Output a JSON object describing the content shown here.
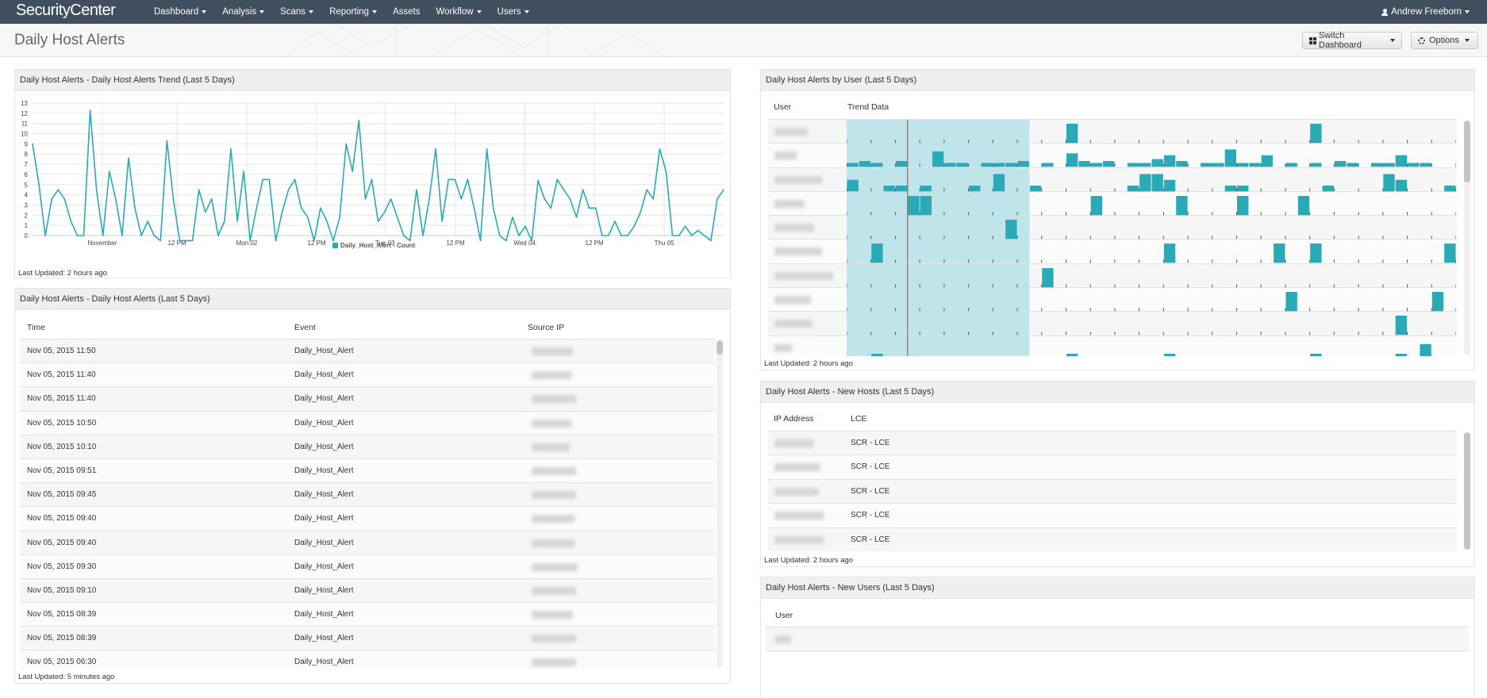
{
  "app": {
    "logo": "SecurityCenter",
    "user_name": "Andrew Freeborn"
  },
  "nav": [
    {
      "label": "Dashboard",
      "dropdown": true
    },
    {
      "label": "Analysis",
      "dropdown": true
    },
    {
      "label": "Scans",
      "dropdown": true
    },
    {
      "label": "Reporting",
      "dropdown": true
    },
    {
      "label": "Assets",
      "dropdown": false
    },
    {
      "label": "Workflow",
      "dropdown": true
    },
    {
      "label": "Users",
      "dropdown": true
    }
  ],
  "header": {
    "title": "Daily Host Alerts",
    "switch_label": "Switch Dashboard",
    "options_label": "Options"
  },
  "trend_panel": {
    "title": "Daily Host Alerts - Daily Host Alerts Trend (Last 5 Days)",
    "updated": "Last Updated: 2 hours ago"
  },
  "chart_data": {
    "type": "line",
    "title": "",
    "xlabel": "",
    "ylabel": "",
    "ylim": [
      0,
      13
    ],
    "yticks": [
      0,
      1,
      2,
      3,
      4,
      5,
      6,
      7,
      8,
      9,
      10,
      11,
      12,
      13
    ],
    "grid": true,
    "legend": "bottom",
    "color": "#2aa9b6",
    "xticks": [
      {
        "label": "November",
        "x": 0.101
      },
      {
        "label": "12 PM",
        "x": 0.209
      },
      {
        "label": "Mon 02",
        "x": 0.31
      },
      {
        "label": "12 PM",
        "x": 0.411
      },
      {
        "label": "Tue 03",
        "x": 0.51
      },
      {
        "label": "12 PM",
        "x": 0.612
      },
      {
        "label": "Wed 04",
        "x": 0.712
      },
      {
        "label": "12 PM",
        "x": 0.813
      },
      {
        "label": "Thu 05",
        "x": 0.914
      }
    ],
    "series": [
      {
        "name": "Daily_Host_Alert - Count",
        "values": [
          9,
          5,
          0,
          3.6,
          4.5,
          3.6,
          1.4,
          0,
          0,
          12.3,
          4.5,
          0,
          6.3,
          3.6,
          0,
          7.6,
          2.7,
          0,
          1.4,
          0,
          -0.5,
          9.3,
          3.6,
          -0.5,
          -0.5,
          -0.5,
          4.5,
          2.3,
          3.6,
          0,
          1.4,
          8.5,
          1.4,
          6.3,
          -0.5,
          2.7,
          5.5,
          5.5,
          -0.5,
          2.3,
          4.5,
          5.5,
          2.7,
          1.8,
          -0.5,
          2.7,
          1.4,
          -0.5,
          1.8,
          9,
          6.3,
          11.3,
          3.6,
          5.5,
          1.4,
          2.3,
          3.6,
          1.8,
          0,
          -0.5,
          4.5,
          0,
          3.6,
          8.5,
          1.4,
          5.5,
          5.5,
          3.6,
          5.5,
          2.7,
          -0.5,
          8.5,
          2.7,
          0,
          -0.5,
          1.8,
          0,
          0.9,
          -0.5,
          5.4,
          3.6,
          2.7,
          5.5,
          4.5,
          3.6,
          1.8,
          4.5,
          2.7,
          2.7,
          0,
          0,
          1.4,
          0,
          0,
          0.9,
          2.3,
          4.5,
          3.6,
          8.5,
          6.3,
          0,
          0,
          0.9,
          0,
          0.5,
          0,
          -0.5,
          3.6,
          4.5
        ]
      }
    ]
  },
  "alerts_panel": {
    "title": "Daily Host Alerts - Daily Host Alerts (Last 5 Days)",
    "columns": [
      "Time",
      "Event",
      "Source IP"
    ],
    "rows": [
      {
        "time": "Nov 05, 2015 11:50",
        "event": "Daily_Host_Alert"
      },
      {
        "time": "Nov 05, 2015 11:40",
        "event": "Daily_Host_Alert"
      },
      {
        "time": "Nov 05, 2015 11:40",
        "event": "Daily_Host_Alert"
      },
      {
        "time": "Nov 05, 2015 10:50",
        "event": "Daily_Host_Alert"
      },
      {
        "time": "Nov 05, 2015 10:10",
        "event": "Daily_Host_Alert"
      },
      {
        "time": "Nov 05, 2015 09:51",
        "event": "Daily_Host_Alert"
      },
      {
        "time": "Nov 05, 2015 09:45",
        "event": "Daily_Host_Alert"
      },
      {
        "time": "Nov 05, 2015 09:40",
        "event": "Daily_Host_Alert"
      },
      {
        "time": "Nov 05, 2015 09:40",
        "event": "Daily_Host_Alert"
      },
      {
        "time": "Nov 05, 2015 09:30",
        "event": "Daily_Host_Alert"
      },
      {
        "time": "Nov 05, 2015 09:10",
        "event": "Daily_Host_Alert"
      },
      {
        "time": "Nov 05, 2015 08:39",
        "event": "Daily_Host_Alert"
      },
      {
        "time": "Nov 05, 2015 08:39",
        "event": "Daily_Host_Alert"
      },
      {
        "time": "Nov 05, 2015 06:30",
        "event": "Daily_Host_Alert"
      }
    ],
    "updated": "Last Updated: 5 minutes ago"
  },
  "user_panel": {
    "title": "Daily Host Alerts by User (Last 5 Days)",
    "columns": [
      "User",
      "Trend Data"
    ],
    "updated": "Last Updated: 2 hours ago",
    "bar_color": "#2aa9b6",
    "highlight_color": "#bfe4ea",
    "marker_color": "#cc3333",
    "slots": 50,
    "highlight_slots": [
      0,
      15
    ],
    "marker_slot": 5,
    "rows": [
      [
        {
          "s": 18,
          "h": 1
        },
        {
          "s": 38,
          "h": 1
        }
      ],
      [
        {
          "s": 0,
          "h": 0.2
        },
        {
          "s": 1,
          "h": 0.3
        },
        {
          "s": 2,
          "h": 0.2
        },
        {
          "s": 4,
          "h": 0.3
        },
        {
          "s": 7,
          "h": 0.8
        },
        {
          "s": 8,
          "h": 0.2
        },
        {
          "s": 9,
          "h": 0.2
        },
        {
          "s": 11,
          "h": 0.2
        },
        {
          "s": 12,
          "h": 0.2
        },
        {
          "s": 13,
          "h": 0.2
        },
        {
          "s": 14,
          "h": 0.3
        },
        {
          "s": 16,
          "h": 0.2
        },
        {
          "s": 18,
          "h": 0.7
        },
        {
          "s": 19,
          "h": 0.3
        },
        {
          "s": 20,
          "h": 0.2
        },
        {
          "s": 21,
          "h": 0.3
        },
        {
          "s": 23,
          "h": 0.2
        },
        {
          "s": 24,
          "h": 0.2
        },
        {
          "s": 25,
          "h": 0.4
        },
        {
          "s": 26,
          "h": 0.6
        },
        {
          "s": 27,
          "h": 0.3
        },
        {
          "s": 29,
          "h": 0.2
        },
        {
          "s": 30,
          "h": 0.2
        },
        {
          "s": 31,
          "h": 0.9
        },
        {
          "s": 32,
          "h": 0.2
        },
        {
          "s": 33,
          "h": 0.2
        },
        {
          "s": 34,
          "h": 0.6
        },
        {
          "s": 36,
          "h": 0.2
        },
        {
          "s": 38,
          "h": 0.2
        },
        {
          "s": 40,
          "h": 0.3
        },
        {
          "s": 41,
          "h": 0.2
        },
        {
          "s": 43,
          "h": 0.2
        },
        {
          "s": 44,
          "h": 0.2
        },
        {
          "s": 45,
          "h": 0.6
        },
        {
          "s": 46,
          "h": 0.2
        },
        {
          "s": 47,
          "h": 0.2
        }
      ],
      [
        {
          "s": 0,
          "h": 0.6
        },
        {
          "s": 3,
          "h": 0.3
        },
        {
          "s": 4,
          "h": 0.3
        },
        {
          "s": 6,
          "h": 0.3
        },
        {
          "s": 10,
          "h": 0.3
        },
        {
          "s": 12,
          "h": 0.9
        },
        {
          "s": 15,
          "h": 0.3
        },
        {
          "s": 23,
          "h": 0.3
        },
        {
          "s": 24,
          "h": 0.9
        },
        {
          "s": 25,
          "h": 0.9
        },
        {
          "s": 26,
          "h": 0.6
        },
        {
          "s": 31,
          "h": 0.3
        },
        {
          "s": 32,
          "h": 0.3
        },
        {
          "s": 39,
          "h": 0.3
        },
        {
          "s": 44,
          "h": 0.9
        },
        {
          "s": 45,
          "h": 0.6
        },
        {
          "s": 49,
          "h": 0.3
        }
      ],
      [
        {
          "s": 5,
          "h": 1
        },
        {
          "s": 6,
          "h": 1
        },
        {
          "s": 20,
          "h": 1
        },
        {
          "s": 27,
          "h": 1
        },
        {
          "s": 32,
          "h": 1
        },
        {
          "s": 37,
          "h": 1
        }
      ],
      [
        {
          "s": 13,
          "h": 1
        }
      ],
      [
        {
          "s": 2,
          "h": 1
        },
        {
          "s": 26,
          "h": 1
        },
        {
          "s": 35,
          "h": 1
        },
        {
          "s": 38,
          "h": 1
        },
        {
          "s": 49,
          "h": 1
        }
      ],
      [
        {
          "s": 16,
          "h": 1
        }
      ],
      [
        {
          "s": 36,
          "h": 1
        },
        {
          "s": 48,
          "h": 1
        }
      ],
      [
        {
          "s": 45,
          "h": 1
        }
      ],
      [
        {
          "s": 2,
          "h": 0.3
        },
        {
          "s": 18,
          "h": 0.3
        },
        {
          "s": 26,
          "h": 0.3
        },
        {
          "s": 38,
          "h": 0.3
        },
        {
          "s": 45,
          "h": 0.3
        },
        {
          "s": 47,
          "h": 0.8
        }
      ]
    ]
  },
  "new_hosts_panel": {
    "title": "Daily Host Alerts - New Hosts (Last 5 Days)",
    "columns": [
      "IP Address",
      "LCE"
    ],
    "rows": [
      {
        "lce": "SCR - LCE"
      },
      {
        "lce": "SCR - LCE"
      },
      {
        "lce": "SCR - LCE"
      },
      {
        "lce": "SCR - LCE"
      },
      {
        "lce": "SCR - LCE"
      }
    ],
    "updated": "Last Updated: 2 hours ago"
  },
  "new_users_panel": {
    "title": "Daily Host Alerts - New Users (Last 5 Days)",
    "columns": [
      "User"
    ]
  }
}
